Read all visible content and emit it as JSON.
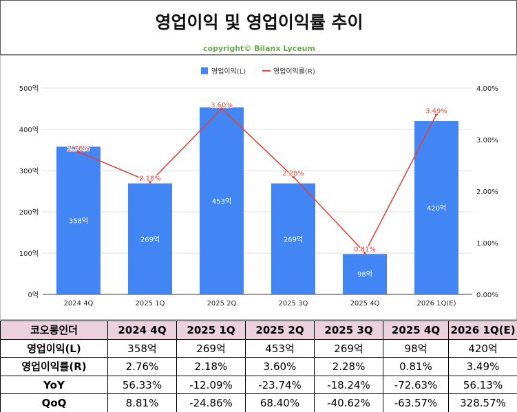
{
  "title": "영업이익 및 영업이익률 추이",
  "copyright": "copyright© Bilanx Lyceum",
  "chart_data": {
    "type": "bar",
    "categories": [
      "2024 4Q",
      "2025 1Q",
      "2025 2Q",
      "2025 3Q",
      "2025 4Q",
      "2026 1Q(E)"
    ],
    "series": [
      {
        "name": "영업이익(L)",
        "type": "bar",
        "axis": "left",
        "color": "#4285f4",
        "values": [
          358,
          269,
          453,
          269,
          98,
          420
        ],
        "labels": [
          "358억",
          "269억",
          "453억",
          "269억",
          "98억",
          "420억"
        ]
      },
      {
        "name": "영업이익률(R)",
        "type": "line",
        "axis": "right",
        "color": "#ea4335",
        "values": [
          2.76,
          2.18,
          3.6,
          2.28,
          0.81,
          3.49
        ],
        "labels": [
          "2.76%",
          "2.18%",
          "3.60%",
          "2.28%",
          "0.81%",
          "3.49%"
        ]
      }
    ],
    "y_left": {
      "min": 0,
      "max": 500,
      "ticks": [
        "0억",
        "100억",
        "200억",
        "300억",
        "400억",
        "500억"
      ]
    },
    "y_right": {
      "min": 0,
      "max": 4,
      "ticks": [
        "0.00%",
        "1.00%",
        "2.00%",
        "3.00%",
        "4.00%"
      ]
    },
    "legend_position": "top",
    "grid": true
  },
  "table": {
    "header": [
      "코오롱인더",
      "2024 4Q",
      "2025 1Q",
      "2025 2Q",
      "2025 3Q",
      "2025 4Q",
      "2026 1Q(E)"
    ],
    "rows": [
      [
        "영업이익(L)",
        "358억",
        "269억",
        "453억",
        "269억",
        "98억",
        "420억"
      ],
      [
        "영업이익률(R)",
        "2.76%",
        "2.18%",
        "3.60%",
        "2.28%",
        "0.81%",
        "3.49%"
      ],
      [
        "YoY",
        "56.33%",
        "-12.09%",
        "-23.74%",
        "-18.24%",
        "-72.63%",
        "56.13%"
      ],
      [
        "QoQ",
        "8.81%",
        "-24.86%",
        "68.40%",
        "-40.62%",
        "-63.57%",
        "328.57%"
      ]
    ]
  }
}
